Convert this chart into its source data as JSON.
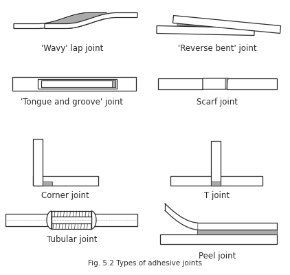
{
  "title": "Fig. 5.2 Types of adhesive joints",
  "bg_color": "#ffffff",
  "line_color": "#2a2a2a",
  "gray_fill": "#aaaaaa",
  "white_fill": "#ffffff",
  "light_gray": "#bbbbbb",
  "font_size": 8.5,
  "labels": [
    "'Wavy' lap joint",
    "'Reverse bent' joint",
    "'Tongue and groove' joint",
    "Scarf joint",
    "Corner joint",
    "T joint",
    "Tubular joint",
    "Peel joint"
  ]
}
